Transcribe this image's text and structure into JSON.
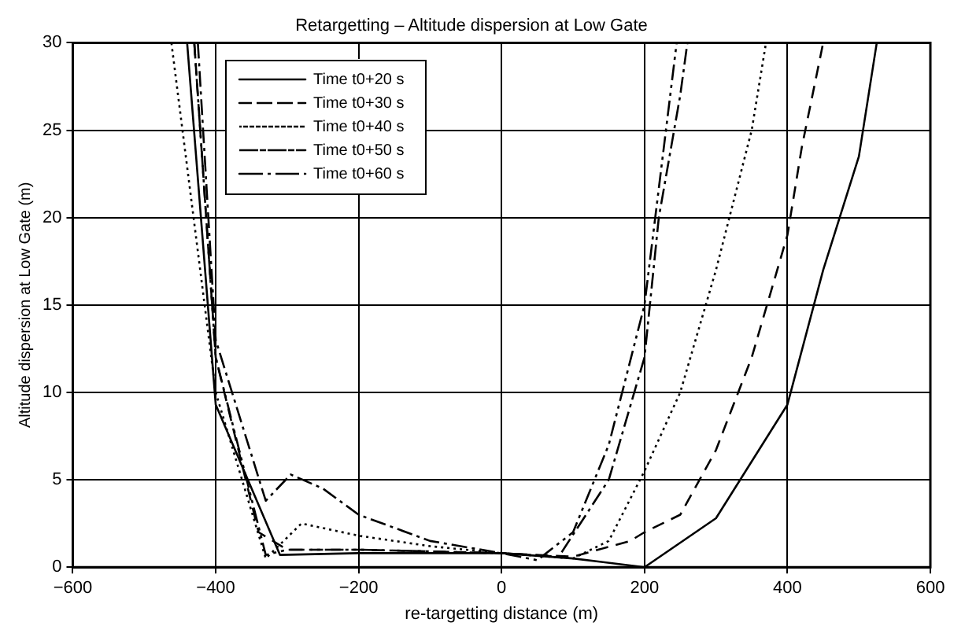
{
  "chart_data": {
    "type": "line",
    "title": "Retargetting – Altitude dispersion at Low Gate",
    "xlabel": "re-targetting distance (m)",
    "ylabel": "Altitude dispersion at Low Gate (m)",
    "xlim": [
      -600,
      600
    ],
    "xticks": [
      -600,
      -400,
      -200,
      0,
      200,
      400,
      600
    ],
    "ylim": [
      0,
      30
    ],
    "yticks": [
      0,
      5,
      10,
      15,
      20,
      25,
      30
    ],
    "grid": true,
    "legend": "top left",
    "marker": "none",
    "series": [
      {
        "name": "Time t0+20 s",
        "color": "#000000",
        "line_style": "solid",
        "x": [
          -440,
          -400,
          -310,
          -200,
          0,
          100,
          200,
          300,
          400,
          450,
          500,
          525
        ],
        "values": [
          30,
          9.3,
          0.7,
          0.8,
          0.8,
          0.5,
          0,
          2.8,
          9.3,
          17,
          23.5,
          30
        ]
      },
      {
        "name": "Time t0+30 s",
        "color": "#000000",
        "line_style": "dashed",
        "x": [
          -430,
          -400,
          -340,
          -300,
          -200,
          0,
          100,
          180,
          200,
          250,
          300,
          350,
          400,
          420,
          450
        ],
        "values": [
          30,
          12,
          2,
          1,
          1,
          0.8,
          0.6,
          1.5,
          2,
          3,
          6.7,
          12,
          19,
          24,
          30
        ]
      },
      {
        "name": "Time t0+40 s",
        "color": "#000000",
        "line_style": "dotted",
        "x": [
          -462,
          -400,
          -330,
          -280,
          -200,
          -100,
          0,
          100,
          150,
          200,
          250,
          300,
          350,
          370
        ],
        "values": [
          30,
          10,
          0.5,
          2.5,
          1.8,
          1.2,
          0.8,
          0.5,
          1.5,
          5.5,
          10,
          17,
          25,
          30
        ]
      },
      {
        "name": "Time t0+50 s",
        "color": "#000000",
        "line_style": "dashdot",
        "x": [
          -425,
          -400,
          -330,
          -295,
          -250,
          -200,
          -100,
          0,
          80,
          150,
          200,
          220,
          250,
          260
        ],
        "values": [
          30,
          13,
          3.8,
          5.3,
          4.5,
          3,
          1.5,
          0.8,
          0.6,
          5,
          12,
          20,
          27,
          30
        ]
      },
      {
        "name": "Time t0+60 s",
        "color": "#000000",
        "line_style": "dashdotdot",
        "x": [
          -430,
          -400,
          -330,
          -300,
          -200,
          0,
          50,
          100,
          150,
          200,
          230,
          245
        ],
        "values": [
          30,
          12,
          0.7,
          1,
          1,
          0.8,
          0.4,
          2,
          7,
          15,
          25,
          30
        ]
      }
    ]
  }
}
